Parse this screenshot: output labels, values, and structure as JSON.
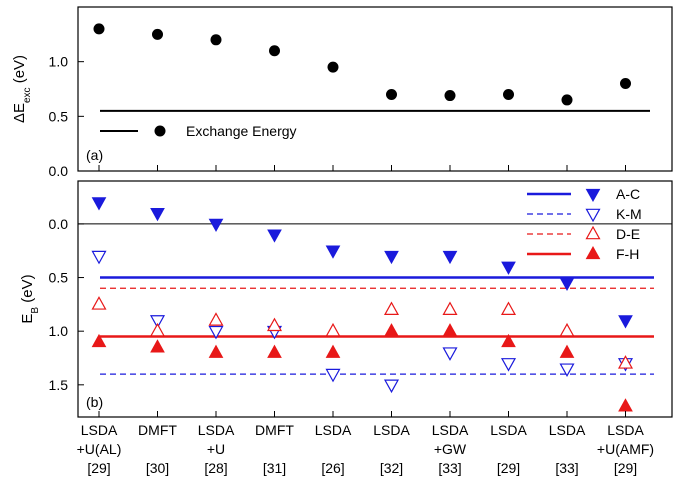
{
  "colors": {
    "blue": "#1a1adc",
    "red": "#e81818",
    "black": "#000000"
  },
  "chart_data": [
    {
      "type": "scatter",
      "panel_label": "(a)",
      "ylabel": "ΔE",
      "ylabel_sub": "exc",
      "ylabel_unit": " (eV)",
      "ylim": [
        0.0,
        1.5
      ],
      "yticks": [
        "0.0",
        "0.5",
        "1.0"
      ],
      "ytick_values": [
        0.0,
        0.5,
        1.0
      ],
      "legend_label": "Exchange Energy",
      "series": [
        {
          "name": "Exchange Energy",
          "values": [
            1.3,
            1.25,
            1.2,
            1.1,
            0.95,
            0.7,
            0.69,
            0.7,
            0.65,
            0.8
          ]
        }
      ],
      "lines": [
        {
          "name": "Exchange Energy",
          "y": 0.55
        }
      ]
    },
    {
      "type": "scatter",
      "panel_label": "(b)",
      "ylabel": "E",
      "ylabel_sub": "B",
      "ylabel_unit": " (eV)",
      "ylim": [
        -0.4,
        1.8
      ],
      "y_inverted": true,
      "yticks": [
        "0.0",
        "0.5",
        "1.0",
        "1.5"
      ],
      "ytick_values": [
        0.0,
        0.5,
        1.0,
        1.5
      ],
      "categories": [
        [
          "LSDA",
          "+U(AL)",
          "[29]"
        ],
        [
          "DMFT",
          "",
          "[30]"
        ],
        [
          "LSDA",
          "+U",
          "[28]"
        ],
        [
          "DMFT",
          "",
          "[31]"
        ],
        [
          "LSDA",
          "",
          "[26]"
        ],
        [
          "LSDA",
          "",
          "[32]"
        ],
        [
          "LSDA",
          "+GW",
          "[33]"
        ],
        [
          "LSDA",
          "",
          "[29]"
        ],
        [
          "LSDA",
          "",
          "[33]"
        ],
        [
          "LSDA",
          "+U(AMF)",
          "[29]"
        ]
      ],
      "series": [
        {
          "name": "A-C",
          "marker": "down-filled",
          "color": "#1a1adc",
          "values": [
            -0.2,
            -0.1,
            0.0,
            0.1,
            0.25,
            0.3,
            0.3,
            0.4,
            0.55,
            0.9
          ],
          "line_y": 0.5,
          "line_style": "solid"
        },
        {
          "name": "K-M",
          "marker": "down-open",
          "color": "#1a1adc",
          "values": [
            0.3,
            0.9,
            1.0,
            1.0,
            1.4,
            1.5,
            1.2,
            1.3,
            1.35,
            1.3
          ],
          "line_y": 1.4,
          "line_style": "dashed"
        },
        {
          "name": "D-E",
          "marker": "up-open",
          "color": "#e81818",
          "values": [
            0.75,
            1.0,
            0.9,
            0.95,
            1.0,
            0.8,
            0.8,
            0.8,
            1.0,
            1.3
          ],
          "line_y": 0.6,
          "line_style": "dashed"
        },
        {
          "name": "F-H",
          "marker": "up-filled",
          "color": "#e81818",
          "values": [
            1.1,
            1.15,
            1.2,
            1.2,
            1.2,
            1.0,
            1.0,
            1.1,
            1.2,
            1.7
          ],
          "line_y": 1.05,
          "line_style": "solid"
        }
      ]
    }
  ]
}
